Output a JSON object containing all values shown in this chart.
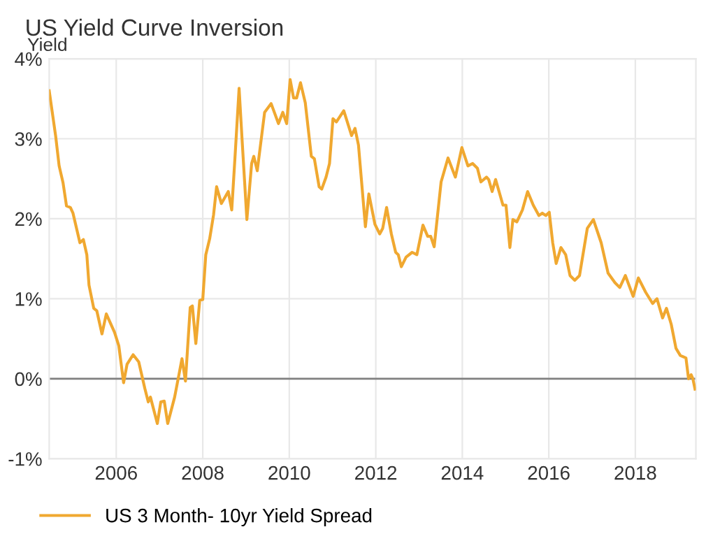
{
  "chart_data": {
    "type": "line",
    "title": "US Yield Curve Inversion",
    "ylabel": "Yield",
    "x": [
      2004.45,
      2004.6,
      2004.68,
      2004.77,
      2004.85,
      2004.94,
      2005.0,
      2005.16,
      2005.24,
      2005.32,
      2005.37,
      2005.48,
      2005.55,
      2005.67,
      2005.77,
      2005.96,
      2006.06,
      2006.17,
      2006.25,
      2006.39,
      2006.52,
      2006.66,
      2006.74,
      2006.79,
      2006.95,
      2007.03,
      2007.11,
      2007.19,
      2007.35,
      2007.52,
      2007.6,
      2007.71,
      2007.76,
      2007.84,
      2007.93,
      2008.0,
      2008.07,
      2008.16,
      2008.25,
      2008.32,
      2008.43,
      2008.59,
      2008.67,
      2008.75,
      2008.84,
      2008.91,
      2009.02,
      2009.13,
      2009.18,
      2009.26,
      2009.43,
      2009.58,
      2009.75,
      2009.85,
      2009.94,
      2010.02,
      2010.1,
      2010.17,
      2010.26,
      2010.37,
      2010.51,
      2010.58,
      2010.69,
      2010.75,
      2010.85,
      2010.93,
      2011.01,
      2011.09,
      2011.26,
      2011.44,
      2011.52,
      2011.6,
      2011.76,
      2011.84,
      2011.98,
      2012.09,
      2012.16,
      2012.25,
      2012.36,
      2012.46,
      2012.52,
      2012.59,
      2012.7,
      2012.84,
      2012.95,
      2013.09,
      2013.2,
      2013.27,
      2013.35,
      2013.51,
      2013.67,
      2013.84,
      2013.99,
      2014.13,
      2014.24,
      2014.35,
      2014.43,
      2014.56,
      2014.61,
      2014.69,
      2014.77,
      2014.94,
      2015.01,
      2015.1,
      2015.17,
      2015.26,
      2015.39,
      2015.51,
      2015.64,
      2015.77,
      2015.85,
      2015.93,
      2016.01,
      2016.09,
      2016.17,
      2016.28,
      2016.39,
      2016.49,
      2016.6,
      2016.71,
      2016.89,
      2017.03,
      2017.21,
      2017.37,
      2017.53,
      2017.64,
      2017.77,
      2017.95,
      2018.07,
      2018.24,
      2018.4,
      2018.5,
      2018.63,
      2018.72,
      2018.83,
      2018.94,
      2019.04,
      2019.17,
      2019.23,
      2019.29,
      2019.33,
      2019.38
    ],
    "series": [
      {
        "name": "US 3 Month- 10yr Yield Spread",
        "color": "#f0a830",
        "values": [
          3.6,
          3.03,
          2.66,
          2.45,
          2.16,
          2.14,
          2.07,
          1.7,
          1.74,
          1.55,
          1.17,
          0.88,
          0.85,
          0.56,
          0.81,
          0.58,
          0.41,
          -0.05,
          0.18,
          0.3,
          0.21,
          -0.12,
          -0.29,
          -0.23,
          -0.56,
          -0.29,
          -0.28,
          -0.56,
          -0.23,
          0.25,
          -0.03,
          0.89,
          0.91,
          0.44,
          0.98,
          0.99,
          1.55,
          1.75,
          2.05,
          2.4,
          2.19,
          2.34,
          2.11,
          2.81,
          3.63,
          2.98,
          1.99,
          2.69,
          2.78,
          2.6,
          3.33,
          3.44,
          3.19,
          3.33,
          3.19,
          3.74,
          3.51,
          3.51,
          3.7,
          3.45,
          2.78,
          2.75,
          2.4,
          2.37,
          2.52,
          2.69,
          3.25,
          3.21,
          3.35,
          3.04,
          3.13,
          2.92,
          1.9,
          2.31,
          1.93,
          1.81,
          1.88,
          2.14,
          1.81,
          1.58,
          1.55,
          1.4,
          1.52,
          1.58,
          1.55,
          1.92,
          1.78,
          1.78,
          1.65,
          2.46,
          2.76,
          2.52,
          2.89,
          2.66,
          2.69,
          2.63,
          2.46,
          2.52,
          2.49,
          2.34,
          2.49,
          2.17,
          2.17,
          1.64,
          1.99,
          1.96,
          2.11,
          2.34,
          2.17,
          2.04,
          2.07,
          2.04,
          2.08,
          1.7,
          1.44,
          1.64,
          1.55,
          1.29,
          1.23,
          1.29,
          1.88,
          1.99,
          1.7,
          1.32,
          1.2,
          1.14,
          1.29,
          1.03,
          1.26,
          1.08,
          0.94,
          1.0,
          0.76,
          0.88,
          0.68,
          0.38,
          0.29,
          0.26,
          0.0,
          0.05,
          0.0,
          -0.13
        ]
      }
    ],
    "xlim": [
      2004.45,
      2019.4
    ],
    "xticks": [
      2006,
      2008,
      2010,
      2012,
      2014,
      2016,
      2018
    ],
    "ylim": [
      -1,
      4
    ],
    "yticks": [
      {
        "value": -1,
        "label": "-1%"
      },
      {
        "value": 0,
        "label": "0%"
      },
      {
        "value": 1,
        "label": "1%"
      },
      {
        "value": 2,
        "label": "2%"
      },
      {
        "value": 3,
        "label": "3%"
      },
      {
        "value": 4,
        "label": "4%"
      }
    ],
    "ref_lines": [
      {
        "axis": "y",
        "value": 0,
        "color": "#808080"
      }
    ],
    "grid": true,
    "legend": "bottom left",
    "marker": "none",
    "line_style": "solid"
  }
}
